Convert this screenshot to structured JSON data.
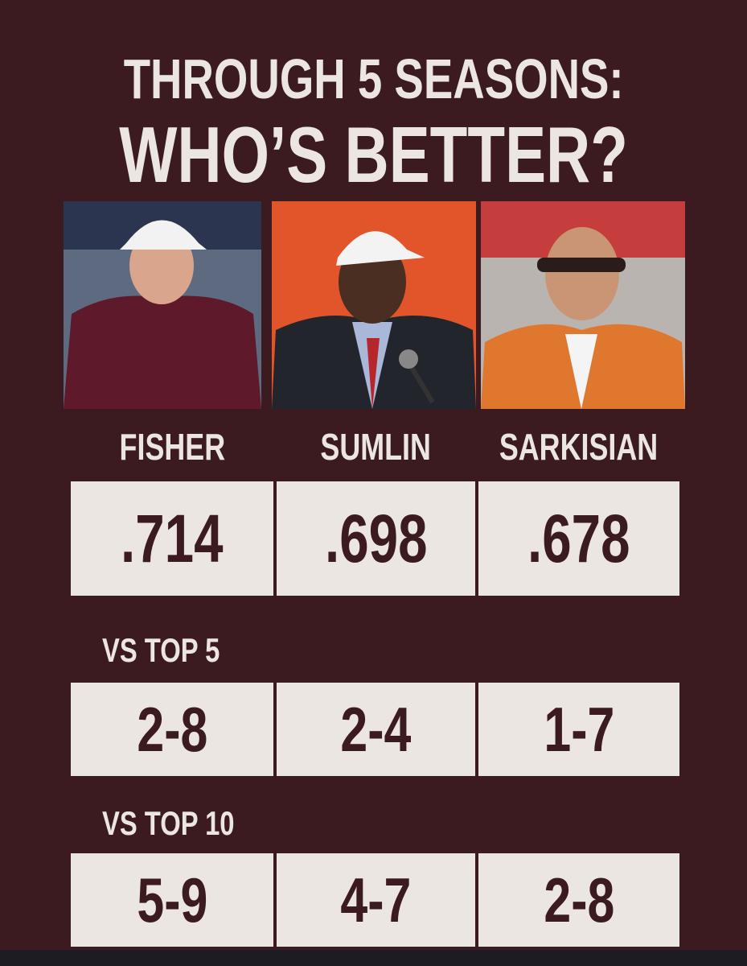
{
  "header": {
    "title_lines": [
      "THROUGH 5 SEASONS:",
      "WHO’S BETTER?"
    ]
  },
  "coaches": [
    "FISHER",
    "SUMLIN",
    "SARKISIAN"
  ],
  "table": {
    "rows": [
      {
        "values": [
          ".714",
          ".698",
          ".678"
        ]
      },
      {
        "label": "VS TOP 5",
        "values": [
          "2-8",
          "2-4",
          "1-7"
        ]
      },
      {
        "label": "VS TOP 10",
        "values": [
          "5-9",
          "4-7",
          "2-8"
        ]
      }
    ]
  }
}
